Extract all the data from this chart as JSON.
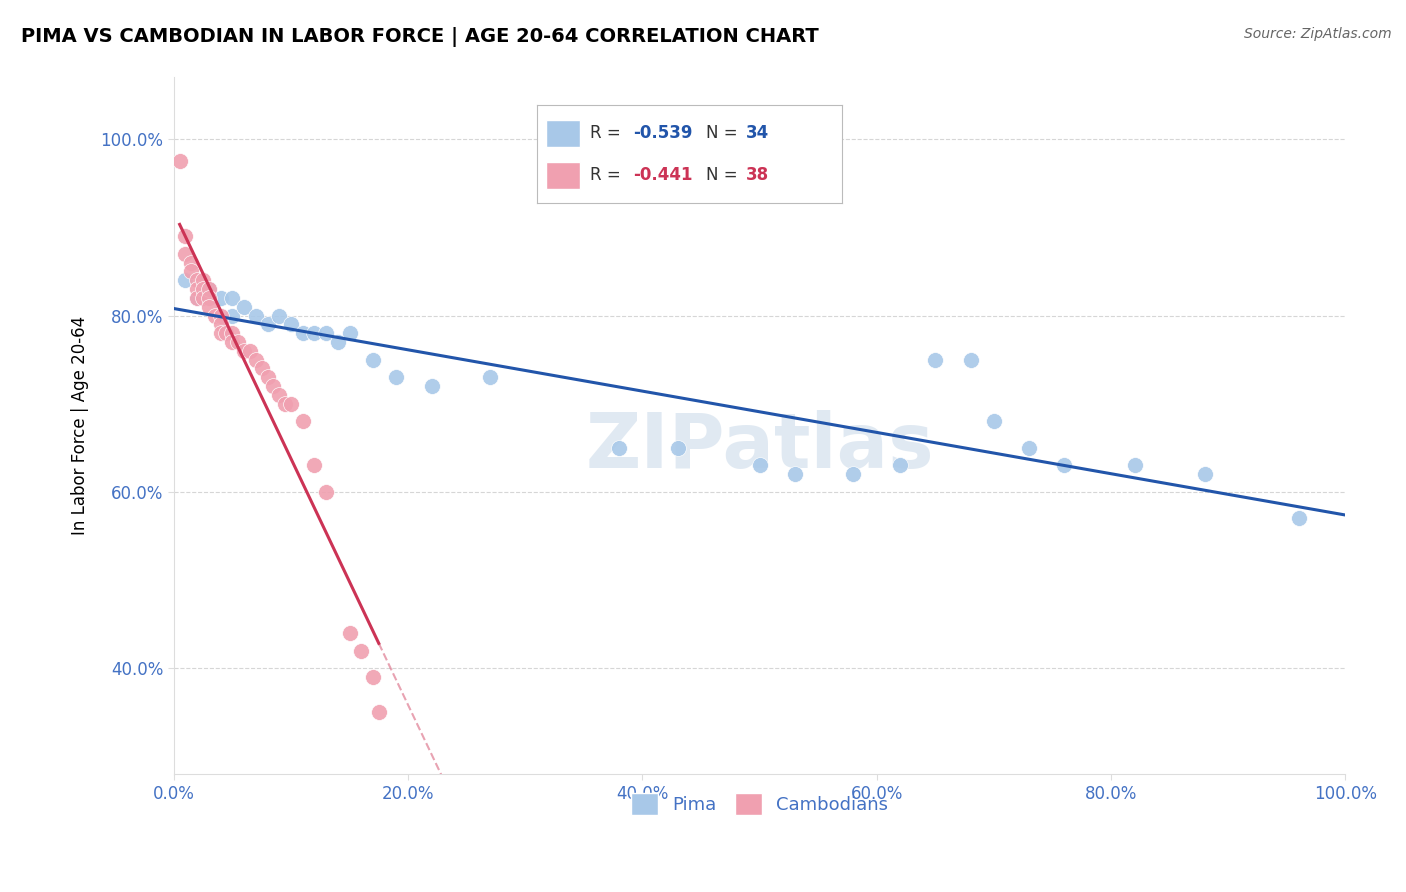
{
  "title": "PIMA VS CAMBODIAN IN LABOR FORCE | AGE 20-64 CORRELATION CHART",
  "source": "Source: ZipAtlas.com",
  "ylabel": "In Labor Force | Age 20-64",
  "pima_x": [
    0.01,
    0.02,
    0.03,
    0.04,
    0.05,
    0.05,
    0.06,
    0.07,
    0.08,
    0.09,
    0.1,
    0.11,
    0.12,
    0.13,
    0.14,
    0.15,
    0.17,
    0.19,
    0.22,
    0.27,
    0.38,
    0.43,
    0.5,
    0.53,
    0.58,
    0.62,
    0.65,
    0.68,
    0.7,
    0.73,
    0.76,
    0.82,
    0.88,
    0.96
  ],
  "pima_y": [
    0.84,
    0.82,
    0.83,
    0.82,
    0.82,
    0.8,
    0.81,
    0.8,
    0.79,
    0.8,
    0.79,
    0.78,
    0.78,
    0.78,
    0.77,
    0.78,
    0.75,
    0.73,
    0.72,
    0.73,
    0.65,
    0.65,
    0.63,
    0.62,
    0.62,
    0.63,
    0.75,
    0.75,
    0.68,
    0.65,
    0.63,
    0.63,
    0.62,
    0.57
  ],
  "cambodian_x": [
    0.005,
    0.01,
    0.01,
    0.015,
    0.015,
    0.02,
    0.02,
    0.02,
    0.025,
    0.025,
    0.025,
    0.03,
    0.03,
    0.03,
    0.035,
    0.04,
    0.04,
    0.04,
    0.045,
    0.05,
    0.05,
    0.055,
    0.06,
    0.065,
    0.07,
    0.075,
    0.08,
    0.085,
    0.09,
    0.095,
    0.1,
    0.11,
    0.12,
    0.13,
    0.15,
    0.16,
    0.17,
    0.175
  ],
  "cambodian_y": [
    0.975,
    0.89,
    0.87,
    0.86,
    0.85,
    0.84,
    0.83,
    0.82,
    0.84,
    0.83,
    0.82,
    0.83,
    0.82,
    0.81,
    0.8,
    0.8,
    0.79,
    0.78,
    0.78,
    0.78,
    0.77,
    0.77,
    0.76,
    0.76,
    0.75,
    0.74,
    0.73,
    0.72,
    0.71,
    0.7,
    0.7,
    0.68,
    0.63,
    0.6,
    0.44,
    0.42,
    0.39,
    0.35
  ],
  "pima_color": "#a8c8e8",
  "cambodian_color": "#f0a0b0",
  "pima_line_color": "#2255aa",
  "cambodian_line_color": "#cc3355",
  "R_pima": -0.539,
  "N_pima": 34,
  "R_cambodian": -0.441,
  "N_cambodian": 38,
  "background_color": "#ffffff",
  "grid_color": "#bbbbbb",
  "watermark": "ZIPatlas",
  "xlim": [
    0.0,
    1.0
  ],
  "ytick_positions": [
    0.4,
    0.6,
    0.8,
    1.0
  ],
  "ytick_labels": [
    "40.0%",
    "60.0%",
    "80.0%",
    "100.0%"
  ],
  "xticks": [
    0.0,
    0.2,
    0.4,
    0.6,
    0.8,
    1.0
  ],
  "xtick_labels": [
    "0.0%",
    "20.0%",
    "40.0%",
    "60.0%",
    "80.0%",
    "100.0%"
  ],
  "legend_R_color": "#2255aa",
  "legend_label1": "Pima",
  "legend_label2": "Cambodians"
}
